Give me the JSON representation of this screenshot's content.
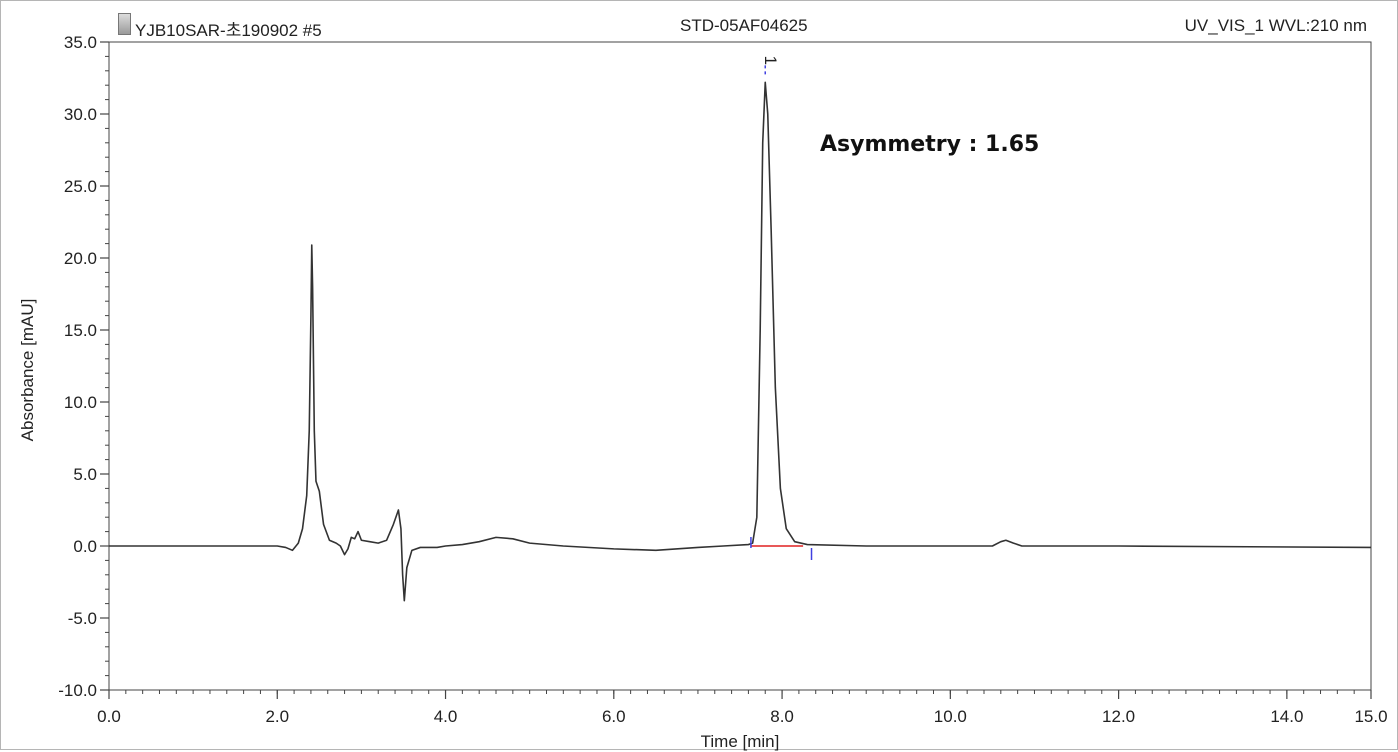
{
  "header": {
    "left": "YJB10SAR-초190902 #5",
    "center": "STD-05AF04625",
    "right": "UV_VIS_1 WVL:210 nm",
    "left_icon": "document-icon"
  },
  "annotation": "Asymmetry : 1.65",
  "chart_data": {
    "type": "line",
    "title": "",
    "xlabel": "Time [min]",
    "ylabel": "Absorbance [mAU]",
    "xlim": [
      0.0,
      15.0
    ],
    "ylim": [
      -10.0,
      35.0
    ],
    "x_ticks": [
      "0.0",
      "2.0",
      "4.0",
      "6.0",
      "8.0",
      "10.0",
      "12.0",
      "14.0",
      "15.0"
    ],
    "x_tick_values": [
      0,
      2,
      4,
      6,
      8,
      10,
      12,
      14,
      15
    ],
    "y_ticks": [
      "-10.0",
      "-5.0",
      "0.0",
      "5.0",
      "10.0",
      "15.0",
      "20.0",
      "25.0",
      "30.0",
      "35.0"
    ],
    "y_tick_values": [
      -10,
      -5,
      0,
      5,
      10,
      15,
      20,
      25,
      30,
      35
    ],
    "grid": false,
    "line_color": "#333333",
    "peak_label": "1",
    "peak": {
      "time": 7.8,
      "height": 32.2
    },
    "baseline": {
      "start": 7.63,
      "end": 8.25,
      "color": "#e02020"
    },
    "integration_markers": {
      "start": 7.63,
      "end": 8.35,
      "apex": 7.8,
      "color": "#4040e0"
    },
    "series": [
      {
        "values": [
          [
            0.0,
            0.0
          ],
          [
            2.0,
            0.0
          ],
          [
            2.1,
            -0.1
          ],
          [
            2.18,
            -0.3
          ],
          [
            2.25,
            0.2
          ],
          [
            2.3,
            1.2
          ],
          [
            2.35,
            3.5
          ],
          [
            2.38,
            8.0
          ],
          [
            2.4,
            16.0
          ],
          [
            2.41,
            20.9
          ],
          [
            2.42,
            18.0
          ],
          [
            2.44,
            8.0
          ],
          [
            2.46,
            4.5
          ],
          [
            2.5,
            3.8
          ],
          [
            2.55,
            1.5
          ],
          [
            2.62,
            0.4
          ],
          [
            2.7,
            0.2
          ],
          [
            2.75,
            0.0
          ],
          [
            2.8,
            -0.6
          ],
          [
            2.84,
            -0.2
          ],
          [
            2.88,
            0.6
          ],
          [
            2.92,
            0.5
          ],
          [
            2.96,
            1.0
          ],
          [
            3.0,
            0.4
          ],
          [
            3.1,
            0.3
          ],
          [
            3.2,
            0.2
          ],
          [
            3.3,
            0.4
          ],
          [
            3.38,
            1.5
          ],
          [
            3.44,
            2.5
          ],
          [
            3.47,
            1.2
          ],
          [
            3.49,
            -2.0
          ],
          [
            3.51,
            -3.8
          ],
          [
            3.54,
            -1.5
          ],
          [
            3.6,
            -0.3
          ],
          [
            3.7,
            -0.1
          ],
          [
            3.9,
            -0.1
          ],
          [
            4.0,
            0.0
          ],
          [
            4.2,
            0.1
          ],
          [
            4.4,
            0.3
          ],
          [
            4.6,
            0.6
          ],
          [
            4.8,
            0.5
          ],
          [
            5.0,
            0.2
          ],
          [
            5.4,
            0.0
          ],
          [
            6.0,
            -0.2
          ],
          [
            6.5,
            -0.3
          ],
          [
            7.0,
            -0.1
          ],
          [
            7.3,
            0.0
          ],
          [
            7.6,
            0.1
          ],
          [
            7.65,
            0.2
          ],
          [
            7.7,
            2.0
          ],
          [
            7.74,
            15.0
          ],
          [
            7.77,
            28.0
          ],
          [
            7.8,
            32.2
          ],
          [
            7.83,
            30.0
          ],
          [
            7.87,
            22.0
          ],
          [
            7.92,
            11.0
          ],
          [
            7.98,
            4.0
          ],
          [
            8.05,
            1.2
          ],
          [
            8.15,
            0.3
          ],
          [
            8.3,
            0.1
          ],
          [
            9.0,
            0.0
          ],
          [
            10.5,
            0.0
          ],
          [
            10.6,
            0.3
          ],
          [
            10.66,
            0.4
          ],
          [
            10.75,
            0.2
          ],
          [
            10.85,
            0.0
          ],
          [
            12.0,
            0.0
          ],
          [
            15.0,
            -0.1
          ]
        ]
      }
    ]
  }
}
